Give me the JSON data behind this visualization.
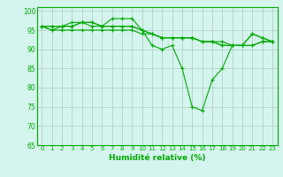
{
  "xlabel": "Humidité relative (%)",
  "xlim": [
    -0.5,
    23.5
  ],
  "ylim": [
    65,
    101
  ],
  "yticks": [
    65,
    70,
    75,
    80,
    85,
    90,
    95,
    100
  ],
  "xticks": [
    0,
    1,
    2,
    3,
    4,
    5,
    6,
    7,
    8,
    9,
    10,
    11,
    12,
    13,
    14,
    15,
    16,
    17,
    18,
    19,
    20,
    21,
    22,
    23
  ],
  "background_color": "#d4f5ee",
  "grid_color": "#b0c8c0",
  "line_color": "#00aa00",
  "line1": [
    96,
    96,
    96,
    96,
    97,
    97,
    96,
    98,
    98,
    98,
    95,
    91,
    90,
    91,
    85,
    75,
    74,
    82,
    85,
    91,
    91,
    94,
    93,
    92
  ],
  "line2": [
    96,
    96,
    96,
    97,
    97,
    97,
    96,
    96,
    96,
    96,
    95,
    94,
    93,
    93,
    93,
    93,
    92,
    92,
    91,
    91,
    91,
    94,
    93,
    92
  ],
  "line3": [
    96,
    95,
    95,
    95,
    95,
    95,
    95,
    95,
    95,
    95,
    94,
    94,
    93,
    93,
    93,
    93,
    92,
    92,
    91,
    91,
    91,
    91,
    92,
    92
  ],
  "line4": [
    96,
    95,
    96,
    96,
    97,
    96,
    96,
    96,
    96,
    96,
    95,
    94,
    93,
    93,
    93,
    93,
    92,
    92,
    92,
    91,
    91,
    91,
    92,
    92
  ]
}
